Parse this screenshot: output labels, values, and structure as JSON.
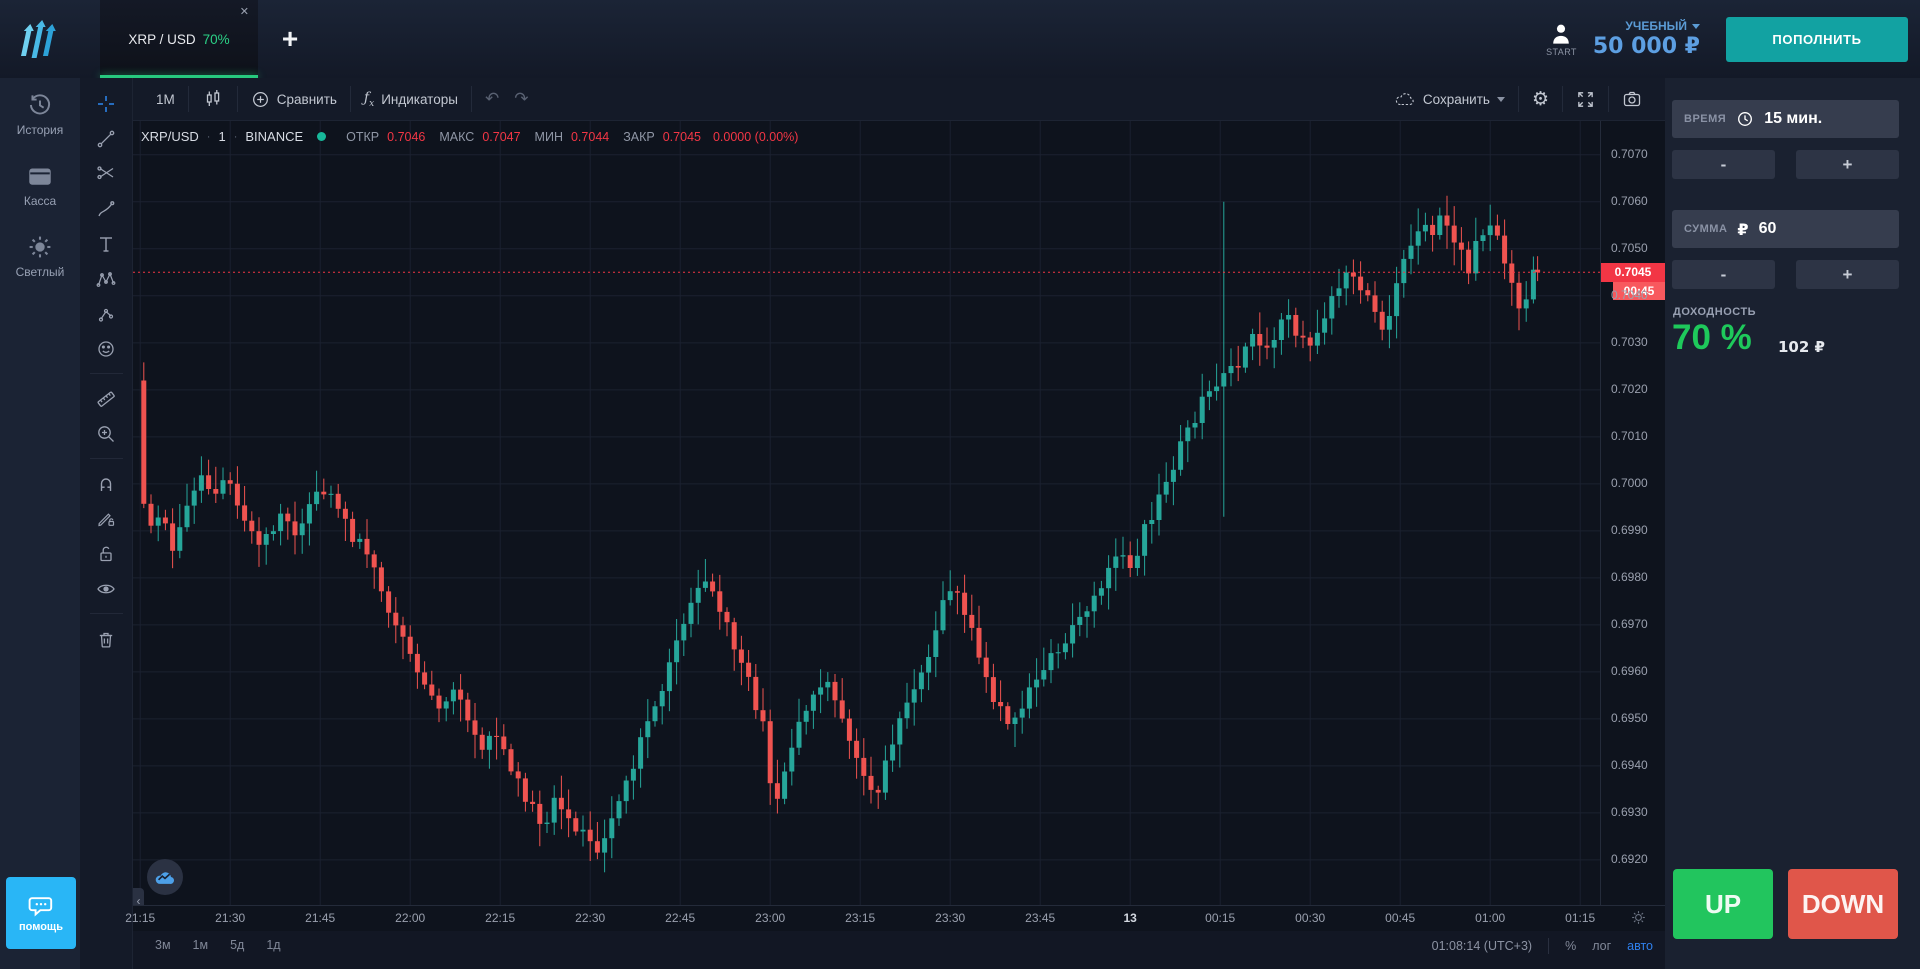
{
  "top_bar": {
    "tab": {
      "symbol": "XRP / USD",
      "payout": "70%",
      "close_glyph": "✕"
    },
    "new_tab_glyph": "+",
    "account": {
      "avatar_caption": "START",
      "type_label": "УЧЕБНЫЙ",
      "balance": "50 000 ₽"
    },
    "deposit_label": "ПОПОЛНИТЬ"
  },
  "sidebar": {
    "items": [
      {
        "id": "history",
        "label": "История"
      },
      {
        "id": "cashier",
        "label": "Касса"
      },
      {
        "id": "theme-light",
        "label": "Светлый"
      }
    ],
    "help_label": "помощь"
  },
  "draw_toolbar": {
    "tools": [
      "crosshair",
      "trend-line",
      "fib-pattern",
      "brush",
      "text",
      "xabcd-pattern",
      "forecast",
      "emoji",
      "ruler",
      "zoom-in",
      "magnet",
      "drawing-mode-lock",
      "unlock",
      "eye",
      "remove-drawings"
    ]
  },
  "chart_toolbar": {
    "interval": "1М",
    "compare_label": "Сравнить",
    "indicators_label": "Индикаторы",
    "undo_glyph": "↶",
    "redo_glyph": "↷",
    "save_label": "Сохранить",
    "gear_glyph": "⚙"
  },
  "legend": {
    "symbol": "XRP/USD",
    "sep": "·",
    "interval": "1",
    "exchange": "BINANCE",
    "fields": [
      {
        "label": "ОТКР",
        "value": "0.7046"
      },
      {
        "label": "МАКС",
        "value": "0.7047"
      },
      {
        "label": "МИН",
        "value": "0.7044"
      },
      {
        "label": "ЗАКР",
        "value": "0.7045"
      }
    ],
    "change": "0.0000 (0.00%)"
  },
  "trade_panel": {
    "time": {
      "label": "ВРЕМЯ",
      "value": "15 мин."
    },
    "amount": {
      "label": "СУММА",
      "currency": "₽",
      "value": "60"
    },
    "minus_label": "-",
    "plus_label": "+",
    "payout": {
      "label": "ДОХОДНОСТЬ",
      "percent": "70 %",
      "amount": "102 ₽"
    },
    "up_label": "UP",
    "down_label": "DOWN"
  },
  "bottom_bar": {
    "ranges": [
      "3м",
      "1м",
      "5д",
      "1д"
    ],
    "clock": "01:08:14 (UTC+3)",
    "scale_percent": "%",
    "scale_log": "лог",
    "scale_auto": "авто"
  },
  "chart_data": {
    "type": "candlestick",
    "symbol": "XRP/USD",
    "exchange": "BINANCE",
    "interval_minutes": 1,
    "ohlc_current": {
      "open": 0.7046,
      "high": 0.7047,
      "low": 0.7044,
      "close": 0.7045,
      "change": "0.0000 (0.00%)"
    },
    "current_price": 0.7045,
    "countdown": "00:45",
    "y_ticks": [
      0.707,
      0.706,
      0.705,
      0.704,
      0.703,
      0.702,
      0.701,
      0.7,
      0.699,
      0.698,
      0.697,
      0.696,
      0.695,
      0.694,
      0.693,
      0.692
    ],
    "ylim": [
      0.69104,
      0.70772
    ],
    "x_labels": [
      "21:15",
      "21:30",
      "21:45",
      "22:00",
      "22:15",
      "22:30",
      "22:45",
      "23:00",
      "23:15",
      "23:30",
      "23:45",
      "13",
      "00:15",
      "00:30",
      "00:45",
      "01:00",
      "01:15"
    ],
    "date_label": "13",
    "xlim_minutes": [
      -1.2,
      243.3
    ],
    "t_end": 233,
    "candle_step_min": 1.2,
    "spike": {
      "t": 181,
      "high": 0.706,
      "low": 0.6993
    },
    "path_keypoints": [
      [
        0,
        0.7022
      ],
      [
        1.5,
        0.6988
      ],
      [
        4,
        0.6994
      ],
      [
        6,
        0.6986
      ],
      [
        9,
        0.6998
      ],
      [
        11,
        0.7002
      ],
      [
        13,
        0.6996
      ],
      [
        15,
        0.7002
      ],
      [
        18,
        0.6992
      ],
      [
        21,
        0.6987
      ],
      [
        24,
        0.6994
      ],
      [
        27,
        0.6989
      ],
      [
        30,
        0.6999
      ],
      [
        33,
        0.6996
      ],
      [
        36,
        0.6989
      ],
      [
        39,
        0.6984
      ],
      [
        42,
        0.6974
      ],
      [
        45,
        0.6964
      ],
      [
        48,
        0.6956
      ],
      [
        51,
        0.6951
      ],
      [
        53,
        0.6957
      ],
      [
        55,
        0.6949
      ],
      [
        58,
        0.6944
      ],
      [
        60,
        0.6947
      ],
      [
        63,
        0.6938
      ],
      [
        66,
        0.6931
      ],
      [
        68,
        0.6927
      ],
      [
        70,
        0.6934
      ],
      [
        72,
        0.6929
      ],
      [
        75,
        0.6924
      ],
      [
        77,
        0.6921
      ],
      [
        79,
        0.6929
      ],
      [
        82,
        0.6937
      ],
      [
        85,
        0.6949
      ],
      [
        88,
        0.6957
      ],
      [
        90,
        0.6967
      ],
      [
        93,
        0.6977
      ],
      [
        95,
        0.698
      ],
      [
        97,
        0.6974
      ],
      [
        99,
        0.6967
      ],
      [
        101,
        0.6961
      ],
      [
        103,
        0.6954
      ],
      [
        105,
        0.6947
      ],
      [
        106,
        0.6929
      ],
      [
        108,
        0.6939
      ],
      [
        110,
        0.6949
      ],
      [
        113,
        0.6955
      ],
      [
        115,
        0.6957
      ],
      [
        117,
        0.6951
      ],
      [
        119,
        0.6944
      ],
      [
        121,
        0.6938
      ],
      [
        123,
        0.6933
      ],
      [
        125,
        0.6941
      ],
      [
        127,
        0.6949
      ],
      [
        129,
        0.6954
      ],
      [
        131,
        0.6959
      ],
      [
        133,
        0.6967
      ],
      [
        135,
        0.6979
      ],
      [
        137,
        0.6976
      ],
      [
        139,
        0.6969
      ],
      [
        141,
        0.6961
      ],
      [
        143,
        0.6954
      ],
      [
        145,
        0.6949
      ],
      [
        148,
        0.6953
      ],
      [
        150,
        0.6959
      ],
      [
        153,
        0.6964
      ],
      [
        156,
        0.6969
      ],
      [
        159,
        0.6974
      ],
      [
        162,
        0.6981
      ],
      [
        164,
        0.6985
      ],
      [
        166,
        0.6982
      ],
      [
        168,
        0.699
      ],
      [
        170,
        0.6996
      ],
      [
        172,
        0.7001
      ],
      [
        174,
        0.7008
      ],
      [
        176,
        0.7013
      ],
      [
        178,
        0.7019
      ],
      [
        180,
        0.7021
      ],
      [
        182,
        0.7023
      ],
      [
        184,
        0.7027
      ],
      [
        186,
        0.7031
      ],
      [
        188,
        0.7028
      ],
      [
        190,
        0.7033
      ],
      [
        192,
        0.7036
      ],
      [
        194,
        0.703
      ],
      [
        196,
        0.7029
      ],
      [
        198,
        0.7036
      ],
      [
        200,
        0.7041
      ],
      [
        202,
        0.7046
      ],
      [
        204,
        0.7042
      ],
      [
        206,
        0.7037
      ],
      [
        208,
        0.7031
      ],
      [
        210,
        0.7044
      ],
      [
        212,
        0.7051
      ],
      [
        214,
        0.7056
      ],
      [
        216,
        0.7052
      ],
      [
        218,
        0.7058
      ],
      [
        220,
        0.705
      ],
      [
        222,
        0.7046
      ],
      [
        224,
        0.7053
      ],
      [
        226,
        0.7056
      ],
      [
        228,
        0.7048
      ],
      [
        230,
        0.704
      ],
      [
        231,
        0.7035
      ],
      [
        232,
        0.7043
      ],
      [
        233,
        0.7045
      ]
    ],
    "colors": {
      "up": "#26a69a",
      "down": "#ef5350",
      "grid": "#1b2130",
      "line": "#f23645",
      "price_tag": "#f23645",
      "countdown_bg": "#f8595e"
    }
  }
}
